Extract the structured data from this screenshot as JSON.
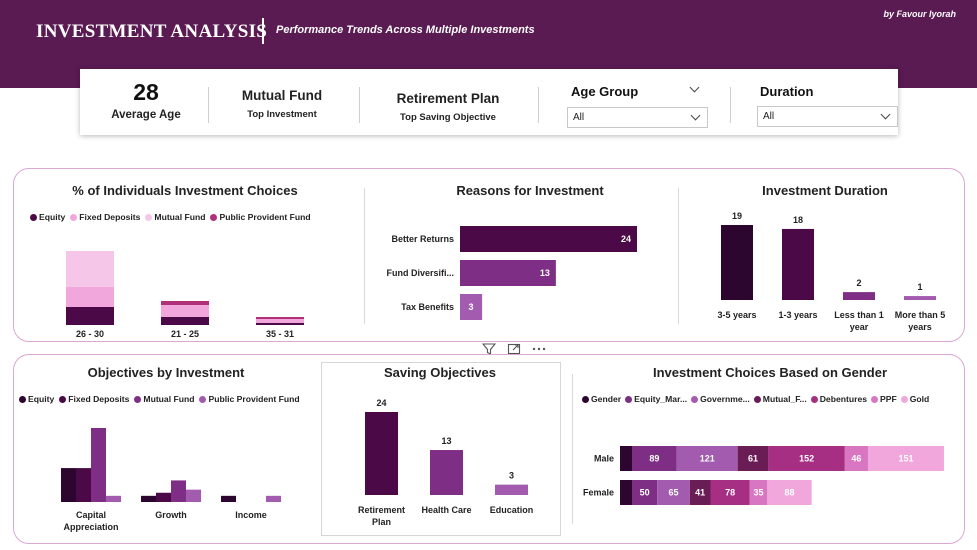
{
  "header": {
    "title": "INVESTMENT ANALYSIS",
    "subtitle": "Performance Trends Across Multiple Investments",
    "byline": "by Favour Iyorah",
    "bg_color": "#5a1a52"
  },
  "kpis": {
    "avg_age_value": "28",
    "avg_age_label": "Average Age",
    "top_investment_value": "Mutual Fund",
    "top_investment_label": "Top Investment",
    "top_saving_value": "Retirement Plan",
    "top_saving_label": "Top Saving Objective"
  },
  "slicers": {
    "age_group": {
      "title": "Age Group",
      "value": "All"
    },
    "duration": {
      "title": "Duration",
      "value": "All"
    }
  },
  "panels": {
    "individuals": "% of Individuals Investment Choices",
    "reasons": "Reasons for Investment",
    "duration": "Investment Duration",
    "objectives": "Objectives by Investment",
    "saving": "Saving Objectives",
    "gender": "Investment Choices Based on Gender"
  },
  "icons": [
    "filter-icon",
    "focus-mode-icon",
    "more-options-icon"
  ],
  "chart_data": [
    {
      "id": "individuals",
      "type": "bar",
      "stacked": true,
      "legend_position": "top",
      "categories": [
        "26 - 30",
        "21 - 25",
        "35 - 31"
      ],
      "series": [
        {
          "name": "Equity",
          "color": "#4b0a47",
          "values": [
            9,
            4,
            1
          ]
        },
        {
          "name": "Fixed Deposits",
          "color": "#f1a7dc",
          "values": [
            10,
            6,
            2
          ]
        },
        {
          "name": "Mutual Fund",
          "color": "#f6c6e8",
          "values": [
            18,
            0,
            0
          ]
        },
        {
          "name": "Public Provident Fund",
          "color": "#b0307a",
          "values": [
            0,
            2,
            1
          ]
        }
      ],
      "ymax": 40
    },
    {
      "id": "reasons",
      "type": "bar",
      "orientation": "horizontal",
      "categories": [
        "Better Returns",
        "Fund Diversifi...",
        "Tax Benefits"
      ],
      "values": [
        24,
        13,
        3
      ],
      "colors": [
        "#4b0a47",
        "#7e2e84",
        "#a35bb0"
      ],
      "xmax": 24
    },
    {
      "id": "duration",
      "type": "bar",
      "categories": [
        "3-5 years",
        "1-3 years",
        "Less than 1 year",
        "More than 5 years"
      ],
      "values": [
        19,
        18,
        2,
        1
      ],
      "colors": [
        "#2d0630",
        "#4b0a47",
        "#7e2e84",
        "#a35bb0"
      ],
      "ymax": 19
    },
    {
      "id": "objectives",
      "type": "bar",
      "legend_position": "top",
      "categories": [
        "Capital Appreciation",
        "Growth",
        "Income"
      ],
      "series": [
        {
          "name": "Equity",
          "color": "#2d0630",
          "values": [
            11,
            2,
            2
          ]
        },
        {
          "name": "Fixed Deposits",
          "color": "#4b0a47",
          "values": [
            11,
            3,
            0
          ]
        },
        {
          "name": "Mutual Fund",
          "color": "#7e2e84",
          "values": [
            24,
            7,
            0
          ]
        },
        {
          "name": "Public Provident Fund",
          "color": "#a35bb0",
          "values": [
            2,
            4,
            2
          ]
        }
      ],
      "ymax": 24
    },
    {
      "id": "saving",
      "type": "bar",
      "categories": [
        "Retirement Plan",
        "Health Care",
        "Education"
      ],
      "values": [
        24,
        13,
        3
      ],
      "colors": [
        "#4b0a47",
        "#7e2e84",
        "#a35bb0"
      ],
      "ymax": 24
    },
    {
      "id": "gender",
      "type": "bar",
      "orientation": "horizontal",
      "stacked": true,
      "legend_position": "top",
      "categories": [
        "Male",
        "Female"
      ],
      "series": [
        {
          "name": "Gender",
          "color": "#2d0630",
          "values": [
            null,
            null
          ]
        },
        {
          "name": "Equity_Mar...",
          "color": "#7e2e84",
          "values": [
            89,
            50
          ]
        },
        {
          "name": "Governme...",
          "color": "#a35bb0",
          "values": [
            121,
            65
          ]
        },
        {
          "name": "Mutual_F...",
          "color": "#6a1c55",
          "values": [
            61,
            41
          ]
        },
        {
          "name": "Debentures",
          "color": "#a62e83",
          "values": [
            152,
            78
          ]
        },
        {
          "name": "PPF",
          "color": "#d976c2",
          "values": [
            46,
            35
          ]
        },
        {
          "name": "Gold",
          "color": "#f1a7dc",
          "values": [
            151,
            88
          ]
        }
      ]
    }
  ]
}
